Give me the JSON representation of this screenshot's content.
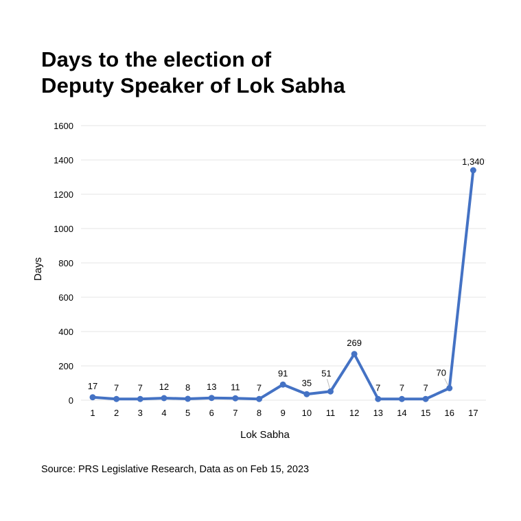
{
  "chart_data": {
    "type": "line",
    "title_lines": [
      "Days to the election of",
      "Deputy Speaker of Lok Sabha"
    ],
    "xlabel": "Lok Sabha",
    "ylabel": "Days",
    "categories": [
      "1",
      "2",
      "3",
      "4",
      "5",
      "6",
      "7",
      "8",
      "9",
      "10",
      "11",
      "12",
      "13",
      "14",
      "15",
      "16",
      "17"
    ],
    "values": [
      17,
      7,
      7,
      12,
      8,
      13,
      11,
      7,
      91,
      35,
      51,
      269,
      7,
      7,
      7,
      70,
      1340
    ],
    "data_labels": [
      "17",
      "7",
      "7",
      "12",
      "8",
      "13",
      "11",
      "7",
      "91",
      "35",
      "51",
      "269",
      "7",
      "7",
      "7",
      "70",
      "1,340"
    ],
    "ylim": [
      0,
      1600
    ],
    "yticks": [
      "0",
      "200",
      "400",
      "600",
      "800",
      "1000",
      "1200",
      "1400",
      "1600"
    ],
    "grid": true,
    "legend": "none",
    "line_color": "#4472C4"
  },
  "source": "Source: PRS Legislative Research, Data as on Feb 15, 2023"
}
